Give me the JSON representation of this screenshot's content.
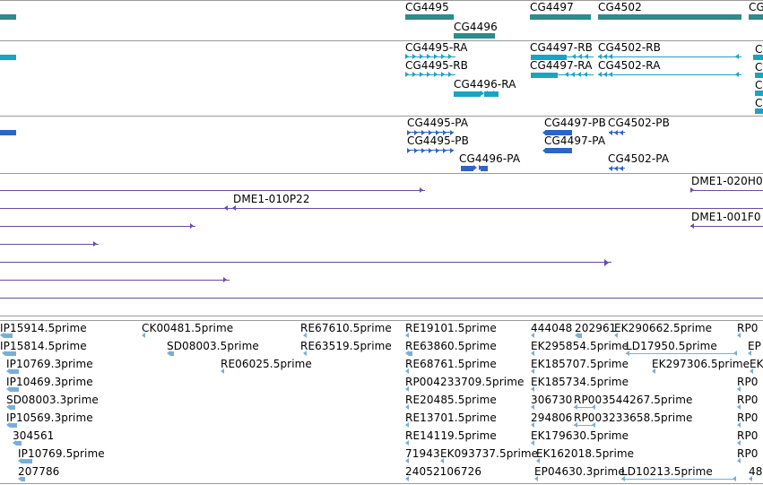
{
  "colors": {
    "gene": "#2e8b8b",
    "transcript": "#1aa3c4",
    "protein": "#2d64c8",
    "clone": "#6a4aa5",
    "est": "#7aaed6",
    "separator": "#9a9a9a"
  },
  "tracks": {
    "genes": {
      "labels": [
        "CG4495",
        "CG4496",
        "CG4497",
        "CG4502",
        "CG"
      ]
    },
    "transcripts": {
      "labels": [
        "CG4495-RA",
        "CG4495-RB",
        "CG4496-RA",
        "CG4497-RB",
        "CG4497-RA",
        "CG4502-RB",
        "CG4502-RA",
        "C",
        "C",
        "C",
        "C"
      ]
    },
    "proteins": {
      "labels": [
        "CG4495-PA",
        "CG4495-PB",
        "CG4496-PA",
        "CG4497-PB",
        "CG4502-PB",
        "CG4497-PA",
        "CG4502-PA"
      ]
    },
    "clones": {
      "labels": [
        "DME1-010P22",
        "DME1-020H0",
        "DME1-001F0"
      ]
    },
    "ests": {
      "labels": [
        "IP15914.5prime",
        "IP15814.5prime",
        "IP10769.3prime",
        "IP10469.3prime",
        "SD08003.3prime",
        "IP10569.3prime",
        "304561",
        "IP10769.5prime",
        "207786",
        "CK00481.5prime",
        "SD08003.5prime",
        "RE67610.5prime",
        "RE63519.5prime",
        "RE06025.5prime",
        "RE19101.5prime",
        "RE63860.5prime",
        "RE68761.5prime",
        "RP004233709.5prime",
        "RE20485.5prime",
        "RE13701.5prime",
        "RE14119.5prime",
        "71943",
        "EK093737.5prime",
        "24052106726",
        "444048",
        "202961",
        "EK290662.5prime",
        "EK295854.5prime",
        "LD17950.5prime",
        "EK185707.5prime",
        "EK297306.5prime",
        "EK185734.5prime",
        "306730",
        "RP003544267.5prime",
        "294806",
        "RP003233658.5prime",
        "EK179630.5prime",
        "EK162018.5prime",
        "EP04630.3prime",
        "LD10213.5prime",
        "RP0",
        "EP",
        "EK",
        "RP0",
        "RP0",
        "RP0",
        "RP0",
        "RP0",
        "48"
      ]
    }
  }
}
